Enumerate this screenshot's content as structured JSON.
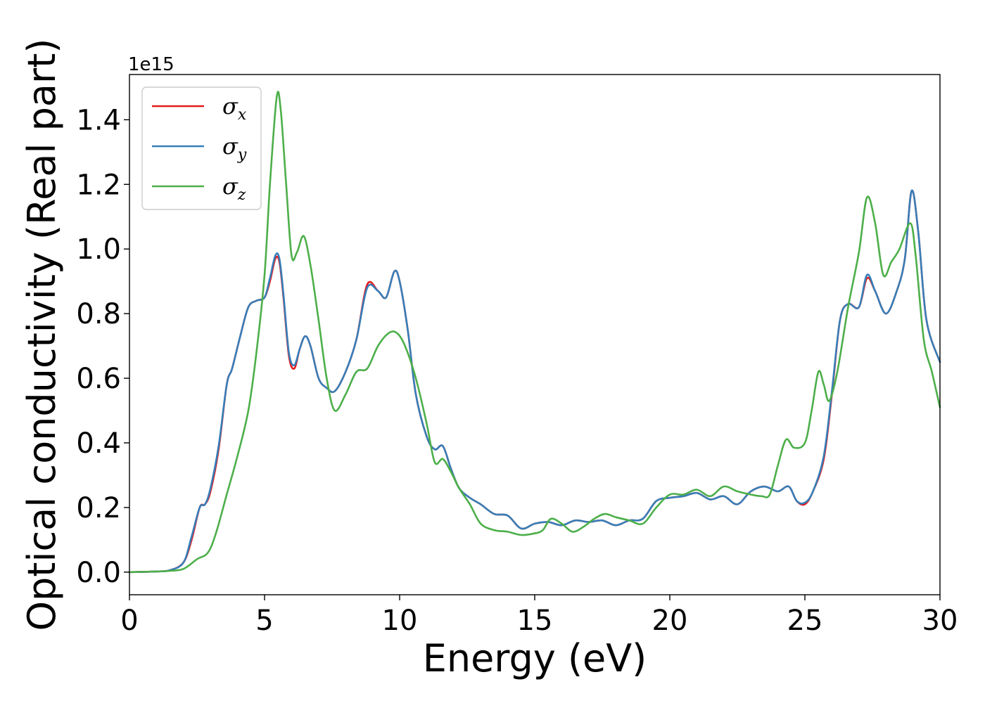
{
  "chart_data": {
    "type": "line",
    "xlabel": "Energy (eV)",
    "ylabel": "Optical conductivity (Real part)",
    "y_offset_label": "1e15",
    "y_multiplier": 1000000000000000.0,
    "xlim": [
      0,
      30
    ],
    "ylim": [
      -0.07,
      1.54
    ],
    "xticks": [
      0,
      5,
      10,
      15,
      20,
      25,
      30
    ],
    "xtick_labels": [
      "0",
      "5",
      "10",
      "15",
      "20",
      "25",
      "30"
    ],
    "yticks": [
      0.0,
      0.2,
      0.4,
      0.6,
      0.8,
      1.0,
      1.2,
      1.4
    ],
    "ytick_labels": [
      "0.0",
      "0.2",
      "0.4",
      "0.6",
      "0.8",
      "1.0",
      "1.2",
      "1.4"
    ],
    "grid": false,
    "legend_position": "top-left",
    "series": [
      {
        "name": "σx",
        "legend_symbol": "σ",
        "legend_subscript": "x",
        "color": "#e41a1c",
        "points": [
          [
            0,
            0
          ],
          [
            1,
            0.002
          ],
          [
            1.5,
            0.006
          ],
          [
            2,
            0.03
          ],
          [
            2.3,
            0.1
          ],
          [
            2.6,
            0.2
          ],
          [
            2.8,
            0.21
          ],
          [
            3,
            0.25
          ],
          [
            3.3,
            0.38
          ],
          [
            3.6,
            0.58
          ],
          [
            3.8,
            0.63
          ],
          [
            4.1,
            0.73
          ],
          [
            4.4,
            0.82
          ],
          [
            4.7,
            0.84
          ],
          [
            5,
            0.85
          ],
          [
            5.2,
            0.9
          ],
          [
            5.4,
            0.97
          ],
          [
            5.55,
            0.96
          ],
          [
            5.7,
            0.85
          ],
          [
            5.9,
            0.67
          ],
          [
            6.1,
            0.63
          ],
          [
            6.3,
            0.69
          ],
          [
            6.5,
            0.73
          ],
          [
            6.7,
            0.7
          ],
          [
            7,
            0.6
          ],
          [
            7.3,
            0.57
          ],
          [
            7.6,
            0.56
          ],
          [
            8,
            0.62
          ],
          [
            8.4,
            0.72
          ],
          [
            8.8,
            0.89
          ],
          [
            9.2,
            0.87
          ],
          [
            9.5,
            0.85
          ],
          [
            9.8,
            0.93
          ],
          [
            10,
            0.9
          ],
          [
            10.3,
            0.75
          ],
          [
            10.6,
            0.55
          ],
          [
            11,
            0.42
          ],
          [
            11.3,
            0.38
          ],
          [
            11.6,
            0.39
          ],
          [
            11.9,
            0.32
          ],
          [
            12.2,
            0.26
          ],
          [
            12.6,
            0.23
          ],
          [
            13,
            0.21
          ],
          [
            13.5,
            0.18
          ],
          [
            14,
            0.175
          ],
          [
            14.5,
            0.135
          ],
          [
            15,
            0.15
          ],
          [
            15.5,
            0.155
          ],
          [
            16,
            0.145
          ],
          [
            16.5,
            0.16
          ],
          [
            17,
            0.155
          ],
          [
            17.5,
            0.16
          ],
          [
            18,
            0.145
          ],
          [
            18.5,
            0.16
          ],
          [
            19,
            0.165
          ],
          [
            19.5,
            0.22
          ],
          [
            20,
            0.23
          ],
          [
            20.5,
            0.235
          ],
          [
            21,
            0.245
          ],
          [
            21.5,
            0.225
          ],
          [
            22,
            0.235
          ],
          [
            22.5,
            0.21
          ],
          [
            23,
            0.25
          ],
          [
            23.5,
            0.265
          ],
          [
            24,
            0.25
          ],
          [
            24.4,
            0.265
          ],
          [
            24.7,
            0.22
          ],
          [
            25,
            0.21
          ],
          [
            25.3,
            0.25
          ],
          [
            25.7,
            0.35
          ],
          [
            26,
            0.55
          ],
          [
            26.3,
            0.78
          ],
          [
            26.6,
            0.83
          ],
          [
            27,
            0.82
          ],
          [
            27.3,
            0.91
          ],
          [
            27.6,
            0.87
          ],
          [
            28,
            0.8
          ],
          [
            28.4,
            0.87
          ],
          [
            28.7,
            0.97
          ],
          [
            28.95,
            1.18
          ],
          [
            29.2,
            1.05
          ],
          [
            29.5,
            0.78
          ],
          [
            30,
            0.65
          ]
        ]
      },
      {
        "name": "σy",
        "legend_symbol": "σ",
        "legend_subscript": "y",
        "color": "#377eb8",
        "points": [
          [
            0,
            0
          ],
          [
            1,
            0.002
          ],
          [
            1.5,
            0.006
          ],
          [
            2,
            0.03
          ],
          [
            2.3,
            0.11
          ],
          [
            2.6,
            0.2
          ],
          [
            2.8,
            0.21
          ],
          [
            3,
            0.26
          ],
          [
            3.3,
            0.39
          ],
          [
            3.6,
            0.58
          ],
          [
            3.8,
            0.63
          ],
          [
            4.1,
            0.73
          ],
          [
            4.4,
            0.82
          ],
          [
            4.7,
            0.84
          ],
          [
            5,
            0.85
          ],
          [
            5.2,
            0.91
          ],
          [
            5.4,
            0.98
          ],
          [
            5.55,
            0.97
          ],
          [
            5.7,
            0.86
          ],
          [
            5.9,
            0.68
          ],
          [
            6.1,
            0.64
          ],
          [
            6.3,
            0.69
          ],
          [
            6.5,
            0.73
          ],
          [
            6.7,
            0.7
          ],
          [
            7,
            0.6
          ],
          [
            7.3,
            0.57
          ],
          [
            7.6,
            0.56
          ],
          [
            8,
            0.62
          ],
          [
            8.4,
            0.72
          ],
          [
            8.8,
            0.88
          ],
          [
            9.2,
            0.87
          ],
          [
            9.5,
            0.85
          ],
          [
            9.8,
            0.93
          ],
          [
            10,
            0.9
          ],
          [
            10.3,
            0.75
          ],
          [
            10.6,
            0.55
          ],
          [
            11,
            0.42
          ],
          [
            11.3,
            0.38
          ],
          [
            11.6,
            0.39
          ],
          [
            11.9,
            0.32
          ],
          [
            12.2,
            0.26
          ],
          [
            12.6,
            0.23
          ],
          [
            13,
            0.21
          ],
          [
            13.5,
            0.18
          ],
          [
            14,
            0.175
          ],
          [
            14.5,
            0.135
          ],
          [
            15,
            0.15
          ],
          [
            15.5,
            0.155
          ],
          [
            16,
            0.145
          ],
          [
            16.5,
            0.16
          ],
          [
            17,
            0.155
          ],
          [
            17.5,
            0.16
          ],
          [
            18,
            0.145
          ],
          [
            18.5,
            0.16
          ],
          [
            19,
            0.165
          ],
          [
            19.5,
            0.22
          ],
          [
            20,
            0.23
          ],
          [
            20.5,
            0.235
          ],
          [
            21,
            0.245
          ],
          [
            21.5,
            0.225
          ],
          [
            22,
            0.235
          ],
          [
            22.5,
            0.21
          ],
          [
            23,
            0.25
          ],
          [
            23.5,
            0.265
          ],
          [
            24,
            0.25
          ],
          [
            24.4,
            0.265
          ],
          [
            24.7,
            0.22
          ],
          [
            25,
            0.215
          ],
          [
            25.3,
            0.25
          ],
          [
            25.7,
            0.36
          ],
          [
            26,
            0.56
          ],
          [
            26.3,
            0.78
          ],
          [
            26.6,
            0.83
          ],
          [
            27,
            0.82
          ],
          [
            27.3,
            0.92
          ],
          [
            27.6,
            0.87
          ],
          [
            28,
            0.8
          ],
          [
            28.4,
            0.87
          ],
          [
            28.7,
            0.97
          ],
          [
            28.95,
            1.18
          ],
          [
            29.2,
            1.05
          ],
          [
            29.5,
            0.78
          ],
          [
            30,
            0.65
          ]
        ]
      },
      {
        "name": "σz",
        "legend_symbol": "σ",
        "legend_subscript": "z",
        "color": "#4daf4a",
        "points": [
          [
            0,
            0
          ],
          [
            1,
            0.002
          ],
          [
            1.5,
            0.004
          ],
          [
            2,
            0.01
          ],
          [
            2.5,
            0.04
          ],
          [
            2.9,
            0.06
          ],
          [
            3.2,
            0.12
          ],
          [
            3.6,
            0.24
          ],
          [
            4,
            0.36
          ],
          [
            4.4,
            0.5
          ],
          [
            4.7,
            0.68
          ],
          [
            5,
            0.92
          ],
          [
            5.2,
            1.2
          ],
          [
            5.45,
            1.47
          ],
          [
            5.6,
            1.43
          ],
          [
            5.8,
            1.2
          ],
          [
            6,
            0.98
          ],
          [
            6.2,
            0.99
          ],
          [
            6.45,
            1.04
          ],
          [
            6.7,
            0.95
          ],
          [
            7,
            0.78
          ],
          [
            7.3,
            0.6
          ],
          [
            7.6,
            0.5
          ],
          [
            8,
            0.55
          ],
          [
            8.4,
            0.62
          ],
          [
            8.8,
            0.63
          ],
          [
            9.2,
            0.7
          ],
          [
            9.6,
            0.74
          ],
          [
            9.9,
            0.74
          ],
          [
            10.2,
            0.7
          ],
          [
            10.6,
            0.6
          ],
          [
            11,
            0.46
          ],
          [
            11.3,
            0.34
          ],
          [
            11.6,
            0.35
          ],
          [
            11.9,
            0.31
          ],
          [
            12.2,
            0.26
          ],
          [
            12.6,
            0.21
          ],
          [
            13,
            0.15
          ],
          [
            13.5,
            0.13
          ],
          [
            14,
            0.125
          ],
          [
            14.5,
            0.115
          ],
          [
            15,
            0.12
          ],
          [
            15.3,
            0.13
          ],
          [
            15.6,
            0.165
          ],
          [
            16,
            0.15
          ],
          [
            16.4,
            0.125
          ],
          [
            16.8,
            0.14
          ],
          [
            17.2,
            0.165
          ],
          [
            17.6,
            0.18
          ],
          [
            18,
            0.17
          ],
          [
            18.5,
            0.16
          ],
          [
            19,
            0.15
          ],
          [
            19.5,
            0.2
          ],
          [
            20,
            0.24
          ],
          [
            20.5,
            0.24
          ],
          [
            21,
            0.255
          ],
          [
            21.5,
            0.235
          ],
          [
            22,
            0.265
          ],
          [
            22.5,
            0.25
          ],
          [
            23,
            0.24
          ],
          [
            23.4,
            0.235
          ],
          [
            23.7,
            0.24
          ],
          [
            24,
            0.33
          ],
          [
            24.3,
            0.41
          ],
          [
            24.6,
            0.385
          ],
          [
            25,
            0.4
          ],
          [
            25.25,
            0.5
          ],
          [
            25.5,
            0.62
          ],
          [
            25.7,
            0.58
          ],
          [
            25.9,
            0.53
          ],
          [
            26.2,
            0.62
          ],
          [
            26.6,
            0.82
          ],
          [
            27,
            0.99
          ],
          [
            27.3,
            1.16
          ],
          [
            27.6,
            1.08
          ],
          [
            27.9,
            0.92
          ],
          [
            28.2,
            0.96
          ],
          [
            28.5,
            1.0
          ],
          [
            28.9,
            1.08
          ],
          [
            29.1,
            0.98
          ],
          [
            29.4,
            0.72
          ],
          [
            29.7,
            0.62
          ],
          [
            30,
            0.51
          ]
        ]
      }
    ]
  }
}
